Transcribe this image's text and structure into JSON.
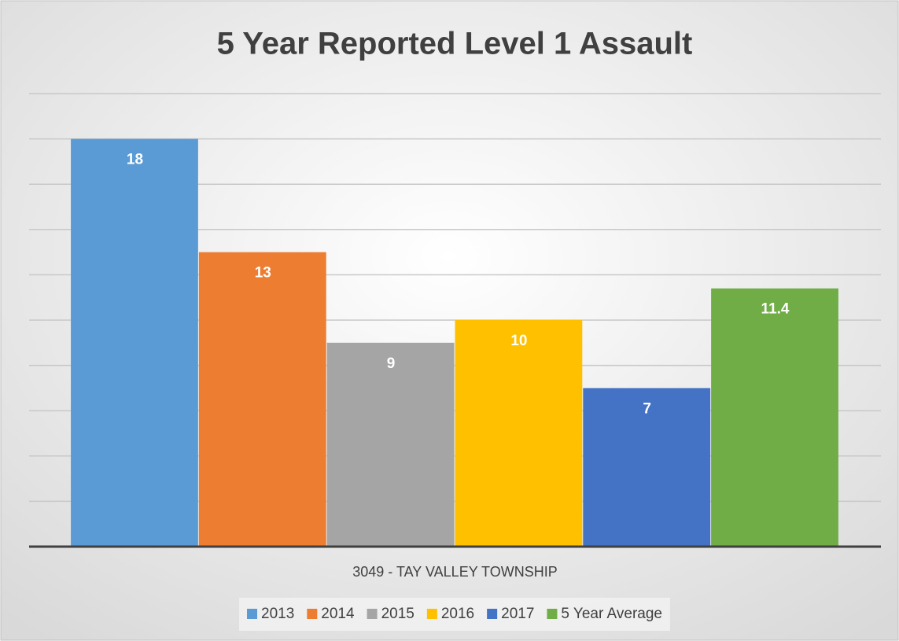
{
  "chart_data": {
    "type": "bar",
    "title": "5 Year Reported Level 1 Assault",
    "categories": [
      "3049 - TAY VALLEY TOWNSHIP"
    ],
    "series": [
      {
        "name": "2013",
        "color": "#5b9bd5",
        "values": [
          18
        ]
      },
      {
        "name": "2014",
        "color": "#ed7d31",
        "values": [
          13
        ]
      },
      {
        "name": "2015",
        "color": "#a5a5a5",
        "values": [
          9
        ]
      },
      {
        "name": "2016",
        "color": "#ffc000",
        "values": [
          10
        ]
      },
      {
        "name": "2017",
        "color": "#4472c4",
        "values": [
          7
        ]
      },
      {
        "name": "5 Year Average",
        "color": "#70ad47",
        "values": [
          11.4
        ]
      }
    ],
    "ylim": [
      0,
      20
    ],
    "yticks": [
      0,
      2,
      4,
      6,
      8,
      10,
      12,
      14,
      16,
      18,
      20
    ],
    "grid": true,
    "legend": "bottom"
  }
}
